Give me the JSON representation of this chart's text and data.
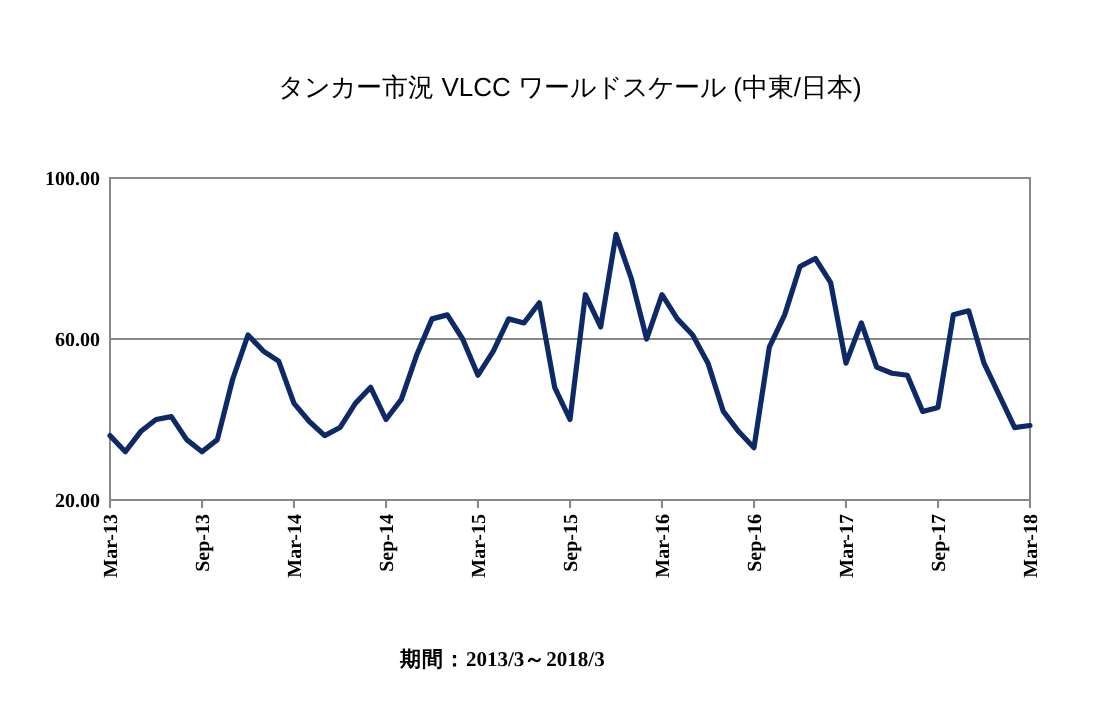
{
  "chart_data": {
    "type": "line",
    "title": "タンカー市況 VLCC ワールドスケール (中東/日本)",
    "annotations": [
      "期間：2013/3～2018/3"
    ],
    "x": [
      "2013-03",
      "2013-04",
      "2013-05",
      "2013-06",
      "2013-07",
      "2013-08",
      "2013-09",
      "2013-10",
      "2013-11",
      "2013-12",
      "2014-01",
      "2014-02",
      "2014-03",
      "2014-04",
      "2014-05",
      "2014-06",
      "2014-07",
      "2014-08",
      "2014-09",
      "2014-10",
      "2014-11",
      "2014-12",
      "2015-01",
      "2015-02",
      "2015-03",
      "2015-04",
      "2015-05",
      "2015-06",
      "2015-07",
      "2015-08",
      "2015-09",
      "2015-10",
      "2015-11",
      "2015-12",
      "2016-01",
      "2016-02",
      "2016-03",
      "2016-04",
      "2016-05",
      "2016-06",
      "2016-07",
      "2016-08",
      "2016-09",
      "2016-10",
      "2016-11",
      "2016-12",
      "2017-01",
      "2017-02",
      "2017-03",
      "2017-04",
      "2017-05",
      "2017-06",
      "2017-07",
      "2017-08",
      "2017-09",
      "2017-10",
      "2017-11",
      "2017-12",
      "2018-01",
      "2018-02",
      "2018-03"
    ],
    "series": [
      {
        "color": "#0d2a66",
        "values": [
          36,
          32,
          37,
          40,
          40.7,
          35,
          32,
          35,
          50,
          61,
          57,
          54.5,
          44,
          39.5,
          36,
          38,
          44,
          48,
          40,
          45,
          56,
          65,
          66,
          60,
          51,
          57,
          65,
          64,
          69,
          48,
          40,
          71,
          63,
          86,
          75,
          60,
          71,
          65,
          61,
          54,
          42,
          37,
          33,
          58,
          66,
          78,
          80,
          74,
          54,
          64,
          53,
          51.5,
          51,
          42,
          43,
          66,
          67,
          54,
          46,
          38,
          38.5
        ]
      }
    ],
    "xlim": [
      "2013-03",
      "2018-03"
    ],
    "xticks": [
      {
        "value": "2013-03",
        "label": "Mar-13"
      },
      {
        "value": "2013-09",
        "label": "Sep-13"
      },
      {
        "value": "2014-03",
        "label": "Mar-14"
      },
      {
        "value": "2014-09",
        "label": "Sep-14"
      },
      {
        "value": "2015-03",
        "label": "Mar-15"
      },
      {
        "value": "2015-09",
        "label": "Sep-15"
      },
      {
        "value": "2016-03",
        "label": "Mar-16"
      },
      {
        "value": "2016-09",
        "label": "Sep-16"
      },
      {
        "value": "2017-03",
        "label": "Mar-17"
      },
      {
        "value": "2017-09",
        "label": "Sep-17"
      },
      {
        "value": "2018-03",
        "label": "Mar-18"
      }
    ],
    "ylim": [
      20,
      100
    ],
    "yticks": [
      {
        "value": 20,
        "label": "20.00"
      },
      {
        "value": 60,
        "label": "60.00"
      },
      {
        "value": 100,
        "label": "100.00"
      }
    ],
    "grid": "y",
    "marker": "none",
    "line_style": "solid"
  }
}
